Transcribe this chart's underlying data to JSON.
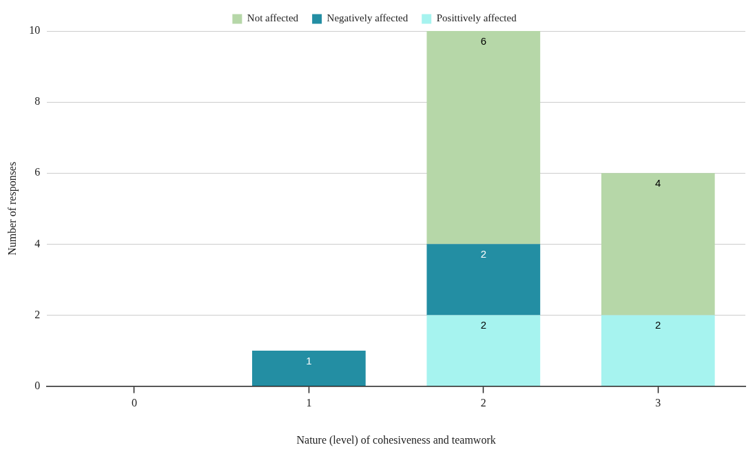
{
  "chart_data": {
    "type": "bar",
    "stacked": true,
    "xlabel": "Nature (level) of cohesiveness and teamwork",
    "ylabel": "Number of responses",
    "categories": [
      "0",
      "1",
      "2",
      "3"
    ],
    "series": [
      {
        "name": "Posittively affected",
        "color": "#a6f3ef",
        "values": [
          null,
          null,
          2,
          2
        ]
      },
      {
        "name": "Negatively affected",
        "color": "#238ea3",
        "values": [
          null,
          1,
          2,
          null
        ]
      },
      {
        "name": "Not affected",
        "color": "#b6d7a8",
        "values": [
          null,
          null,
          6,
          4
        ]
      }
    ],
    "ylim": [
      0,
      10
    ],
    "yticks": [
      0,
      2,
      4,
      6,
      8,
      10
    ],
    "grid": "y",
    "legend": "top",
    "data_labels": true
  }
}
